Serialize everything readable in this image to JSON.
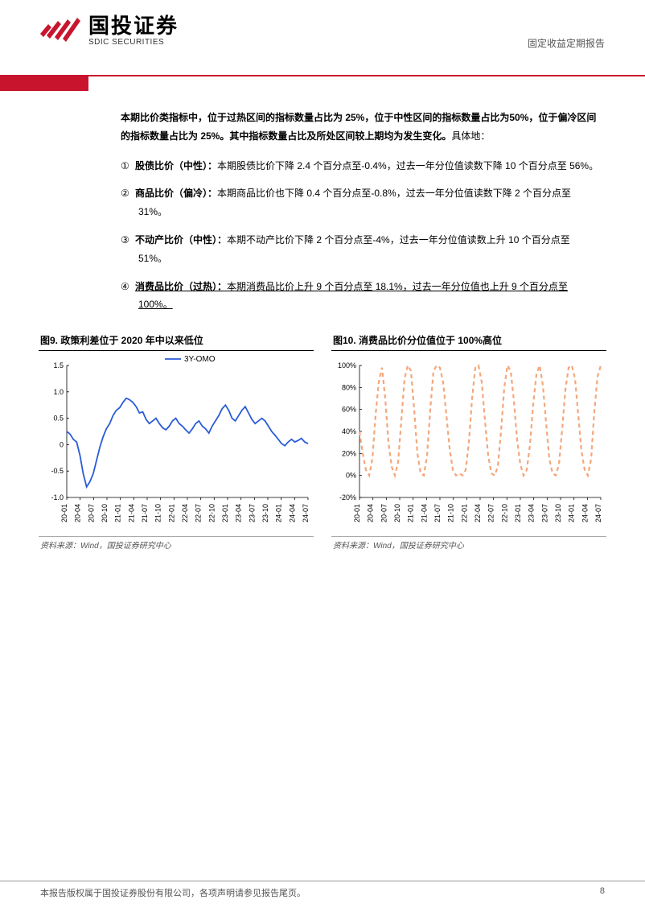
{
  "header": {
    "company_cn": "国投证券",
    "company_en": "SDIC SECURITIES",
    "report_type": "固定收益定期报告",
    "logo_color": "#c8152d"
  },
  "intro": {
    "bold": "本期比价类指标中，位于过热区间的指标数量占比为 25%，位于中性区间的指标数量占比为50%，位于偏冷区间的指标数量占比为 25%。其中指标数量占比及所处区间较上期均为发生变化。",
    "tail": "具体地："
  },
  "items": [
    {
      "num": "①",
      "label": "股债比价（中性）：",
      "text": "本期股债比价下降 2.4 个百分点至-0.4%，过去一年分位值读数下降 10 个百分点至 56%。"
    },
    {
      "num": "②",
      "label": "商品比价（偏冷）：",
      "text": "本期商品比价也下降 0.4 个百分点至-0.8%，过去一年分位值读数下降 2 个百分点至 31%。"
    },
    {
      "num": "③",
      "label": "不动产比价（中性）：",
      "text": "本期不动产比价下降 2 个百分点至-4%，过去一年分位值读数上升 10 个百分点至 51%。"
    },
    {
      "num": "④",
      "label": "消费品比价（过热）：",
      "text": "本期消费品比价上升 9 个百分点至 18.1%，过去一年分位值也上升 9 个百分点至 100%。",
      "underline": true
    }
  ],
  "chart9": {
    "title": "图9. 政策利差位于 2020 年中以来低位",
    "legend": "3Y-OMO",
    "type": "line",
    "line_color": "#2a5bd7",
    "line_width": 1.8,
    "ylim": [
      -1.0,
      1.5
    ],
    "ytick_step": 0.5,
    "yticks": [
      "-1.0",
      "-0.5",
      "0",
      "0.5",
      "1.0",
      "1.5"
    ],
    "xlabels": [
      "20-01",
      "20-04",
      "20-07",
      "20-10",
      "21-01",
      "21-04",
      "21-07",
      "21-10",
      "22-01",
      "22-04",
      "22-07",
      "22-10",
      "23-01",
      "23-04",
      "23-07",
      "23-10",
      "24-01",
      "24-04",
      "24-07"
    ],
    "tick_fontsize": 9,
    "legend_fontsize": 10,
    "background_color": "#ffffff",
    "source": "资料来源：Wind，国投证券研究中心",
    "values": [
      0.25,
      0.2,
      0.1,
      0.05,
      -0.2,
      -0.55,
      -0.8,
      -0.7,
      -0.55,
      -0.3,
      -0.05,
      0.15,
      0.3,
      0.4,
      0.55,
      0.65,
      0.7,
      0.8,
      0.88,
      0.85,
      0.8,
      0.72,
      0.6,
      0.62,
      0.48,
      0.4,
      0.45,
      0.5,
      0.4,
      0.32,
      0.28,
      0.35,
      0.45,
      0.5,
      0.4,
      0.35,
      0.28,
      0.22,
      0.3,
      0.4,
      0.45,
      0.35,
      0.3,
      0.22,
      0.35,
      0.45,
      0.55,
      0.68,
      0.75,
      0.65,
      0.5,
      0.45,
      0.55,
      0.65,
      0.72,
      0.6,
      0.48,
      0.4,
      0.45,
      0.5,
      0.45,
      0.35,
      0.25,
      0.18,
      0.1,
      0.02,
      -0.02,
      0.05,
      0.1,
      0.05,
      0.08,
      0.12,
      0.05,
      0.02
    ]
  },
  "chart10": {
    "title": "图10. 消费品比价分位值位于 100%高位",
    "type": "line",
    "line_color": "#f4a77b",
    "line_width": 2.2,
    "dash": true,
    "ylim": [
      -20,
      100
    ],
    "ytick_step": 20,
    "yticks": [
      "-20%",
      "0%",
      "20%",
      "40%",
      "60%",
      "80%",
      "100%"
    ],
    "xlabels": [
      "20-01",
      "20-04",
      "20-07",
      "20-10",
      "21-01",
      "21-04",
      "21-07",
      "21-10",
      "22-01",
      "22-04",
      "22-07",
      "22-10",
      "23-01",
      "23-04",
      "23-07",
      "23-10",
      "24-01",
      "24-04",
      "24-07"
    ],
    "tick_fontsize": 9,
    "background_color": "#ffffff",
    "source": "资料来源：Wind，国投证券研究中心",
    "values": [
      40,
      20,
      5,
      0,
      15,
      55,
      85,
      98,
      70,
      30,
      8,
      0,
      12,
      50,
      88,
      100,
      95,
      60,
      20,
      2,
      0,
      18,
      60,
      95,
      100,
      98,
      85,
      55,
      25,
      5,
      0,
      2,
      0,
      5,
      30,
      70,
      98,
      100,
      85,
      50,
      18,
      2,
      0,
      8,
      40,
      80,
      100,
      95,
      68,
      32,
      10,
      0,
      5,
      28,
      65,
      92,
      100,
      82,
      48,
      15,
      2,
      0,
      10,
      42,
      78,
      98,
      100,
      88,
      55,
      22,
      5,
      0,
      15,
      58,
      90,
      100
    ]
  },
  "footer": {
    "left": "本报告版权属于国投证券股份有限公司，各项声明请参见报告尾页。",
    "page": "8"
  }
}
